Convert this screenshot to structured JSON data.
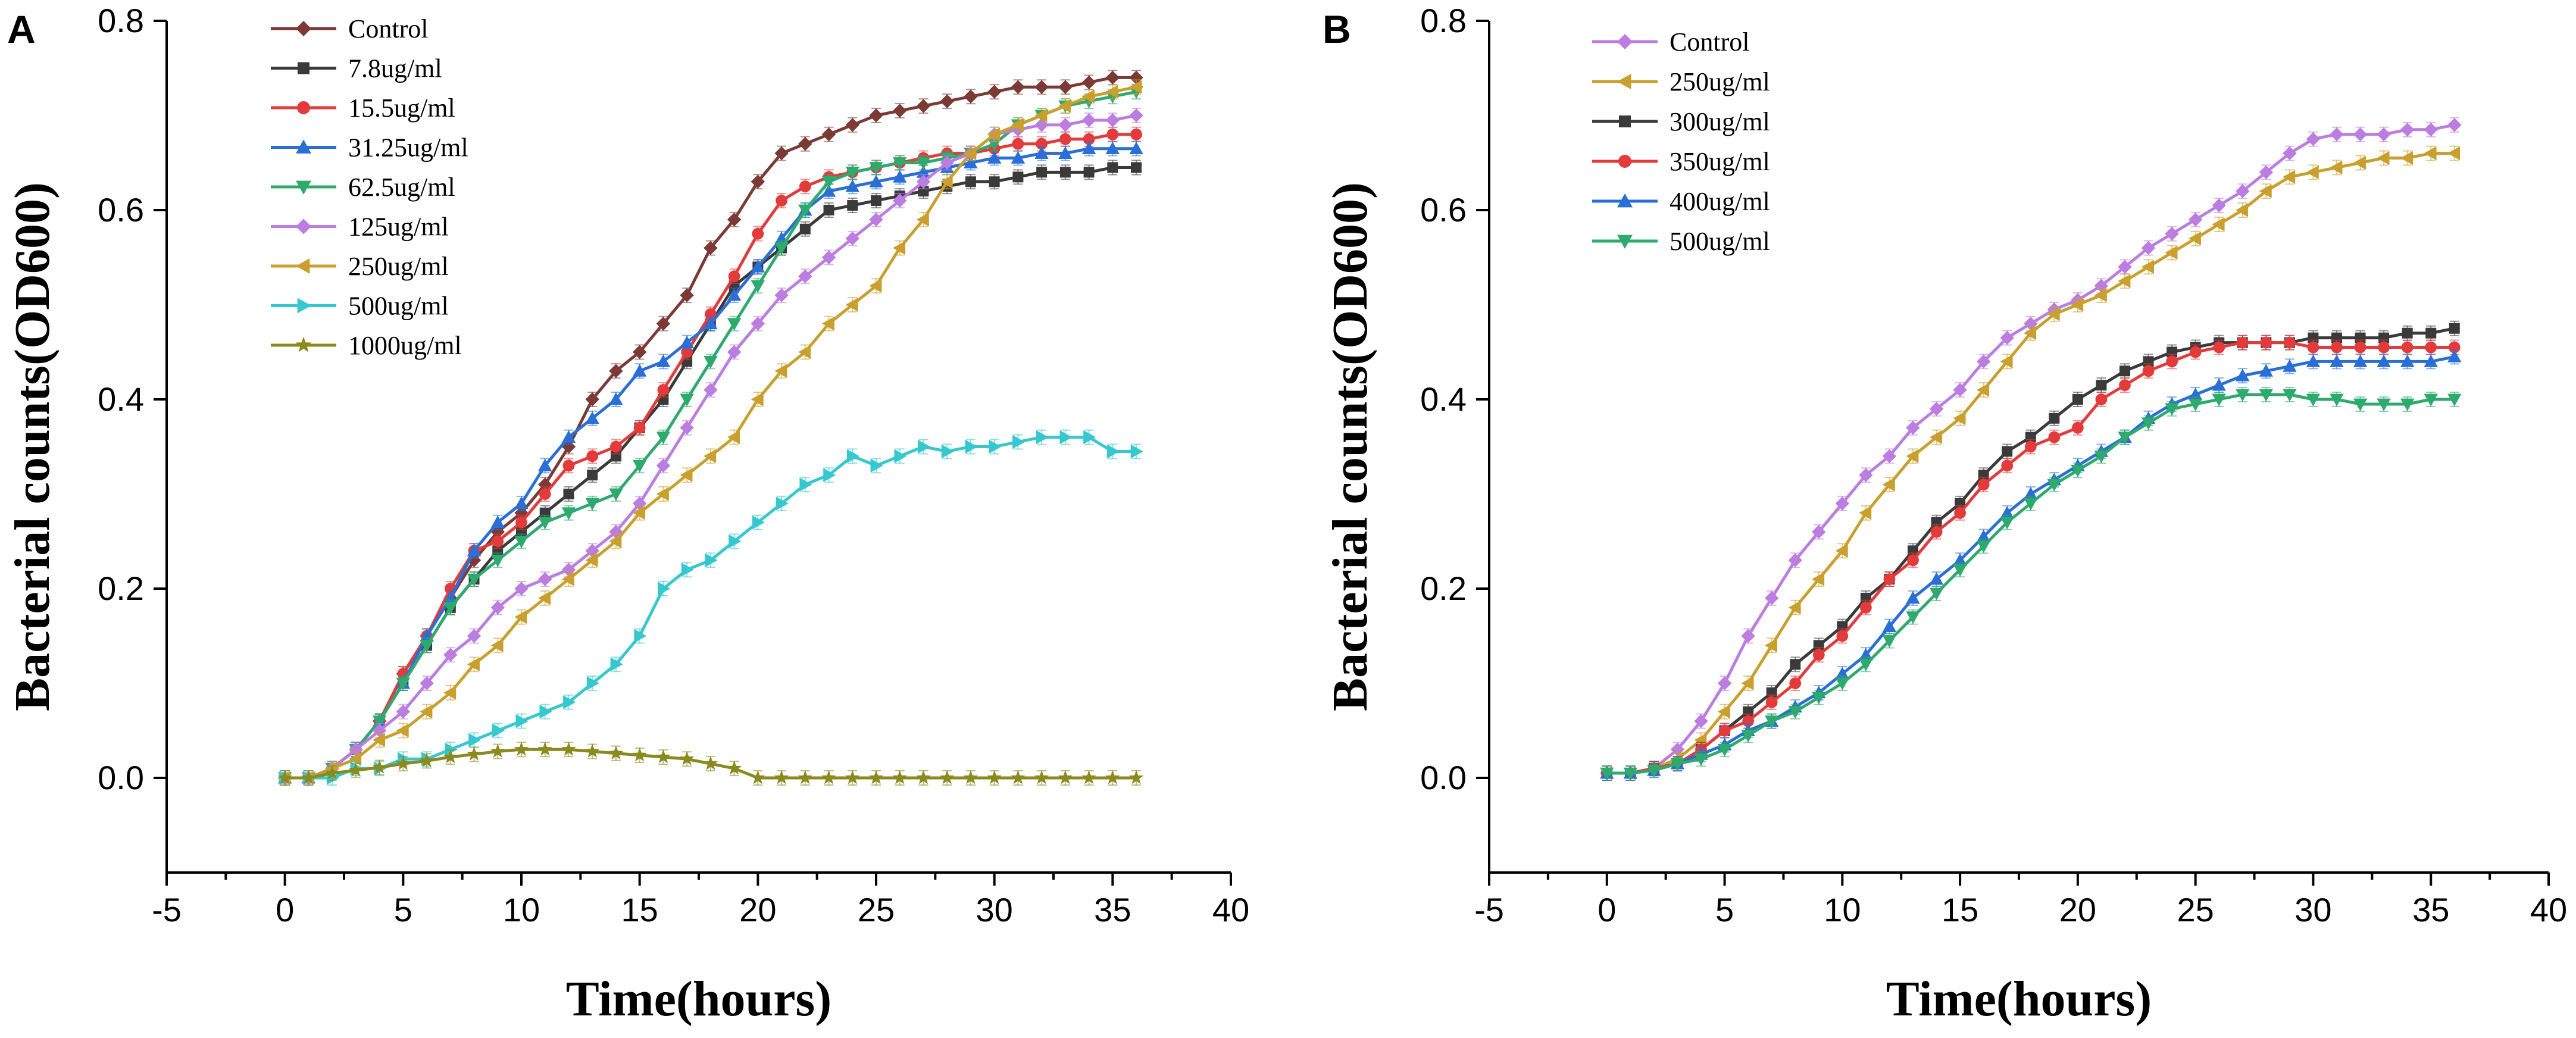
{
  "chart_data": [
    {
      "panel": "A",
      "type": "line",
      "xlabel": "Time(hours)",
      "ylabel": "Bacterial counts(OD600)",
      "xlim": [
        -5,
        40
      ],
      "ylim": [
        -0.1,
        0.8
      ],
      "xticks": [
        "-5",
        "0",
        "5",
        "10",
        "15",
        "20",
        "25",
        "30",
        "35",
        "40"
      ],
      "yticks": [
        "0.0",
        "0.2",
        "0.4",
        "0.6",
        "0.8"
      ],
      "legend_position": "top-left",
      "x": [
        0,
        1,
        2,
        3,
        4,
        5,
        6,
        7,
        8,
        9,
        10,
        11,
        12,
        13,
        14,
        15,
        16,
        17,
        18,
        19,
        20,
        21,
        22,
        23,
        24,
        25,
        26,
        27,
        28,
        29,
        30,
        31,
        32,
        33,
        34,
        35,
        36
      ],
      "series": [
        {
          "name": "Control",
          "color": "#7b3a36",
          "marker": "diamond",
          "values": [
            0.0,
            0.0,
            0.01,
            0.03,
            0.06,
            0.11,
            0.15,
            0.19,
            0.23,
            0.26,
            0.28,
            0.31,
            0.35,
            0.4,
            0.43,
            0.45,
            0.48,
            0.51,
            0.56,
            0.59,
            0.63,
            0.66,
            0.67,
            0.68,
            0.69,
            0.7,
            0.705,
            0.71,
            0.715,
            0.72,
            0.725,
            0.73,
            0.73,
            0.73,
            0.735,
            0.74,
            0.74
          ]
        },
        {
          "name": "7.8ug/ml",
          "color": "#3a3a3a",
          "marker": "square",
          "values": [
            0.0,
            0.0,
            0.01,
            0.03,
            0.06,
            0.1,
            0.14,
            0.18,
            0.21,
            0.24,
            0.26,
            0.28,
            0.3,
            0.32,
            0.34,
            0.37,
            0.4,
            0.44,
            0.48,
            0.52,
            0.54,
            0.56,
            0.58,
            0.6,
            0.605,
            0.61,
            0.615,
            0.62,
            0.625,
            0.63,
            0.63,
            0.635,
            0.64,
            0.64,
            0.64,
            0.645,
            0.645
          ]
        },
        {
          "name": "15.5ug/ml",
          "color": "#e33b3b",
          "marker": "circle",
          "values": [
            0.0,
            0.0,
            0.01,
            0.03,
            0.06,
            0.11,
            0.15,
            0.2,
            0.24,
            0.25,
            0.27,
            0.3,
            0.33,
            0.34,
            0.35,
            0.37,
            0.41,
            0.45,
            0.49,
            0.53,
            0.575,
            0.61,
            0.625,
            0.635,
            0.64,
            0.645,
            0.65,
            0.655,
            0.66,
            0.66,
            0.665,
            0.67,
            0.67,
            0.675,
            0.675,
            0.68,
            0.68
          ]
        },
        {
          "name": "31.25ug/ml",
          "color": "#2a6fd6",
          "marker": "triangle-up",
          "values": [
            0.0,
            0.0,
            0.01,
            0.03,
            0.06,
            0.1,
            0.15,
            0.19,
            0.24,
            0.27,
            0.29,
            0.33,
            0.36,
            0.38,
            0.4,
            0.43,
            0.44,
            0.46,
            0.48,
            0.51,
            0.54,
            0.57,
            0.6,
            0.62,
            0.625,
            0.63,
            0.635,
            0.64,
            0.645,
            0.65,
            0.655,
            0.655,
            0.66,
            0.66,
            0.665,
            0.665,
            0.665
          ]
        },
        {
          "name": "62.5ug/ml",
          "color": "#2eaa6e",
          "marker": "triangle-down",
          "values": [
            0.0,
            0.0,
            0.01,
            0.03,
            0.06,
            0.1,
            0.14,
            0.18,
            0.21,
            0.23,
            0.25,
            0.27,
            0.28,
            0.29,
            0.3,
            0.33,
            0.36,
            0.4,
            0.44,
            0.48,
            0.52,
            0.56,
            0.6,
            0.63,
            0.64,
            0.645,
            0.65,
            0.65,
            0.655,
            0.66,
            0.67,
            0.69,
            0.7,
            0.71,
            0.715,
            0.72,
            0.725
          ]
        },
        {
          "name": "125ug/ml",
          "color": "#bb7ee0",
          "marker": "diamond",
          "values": [
            0.0,
            0.0,
            0.01,
            0.03,
            0.05,
            0.07,
            0.1,
            0.13,
            0.15,
            0.18,
            0.2,
            0.21,
            0.22,
            0.24,
            0.26,
            0.29,
            0.33,
            0.37,
            0.41,
            0.45,
            0.48,
            0.51,
            0.53,
            0.55,
            0.57,
            0.59,
            0.61,
            0.63,
            0.65,
            0.66,
            0.68,
            0.685,
            0.69,
            0.69,
            0.695,
            0.695,
            0.7
          ]
        },
        {
          "name": "250ug/ml",
          "color": "#c9a02e",
          "marker": "left-triangle",
          "values": [
            0.0,
            0.0,
            0.01,
            0.02,
            0.04,
            0.05,
            0.07,
            0.09,
            0.12,
            0.14,
            0.17,
            0.19,
            0.21,
            0.23,
            0.25,
            0.28,
            0.3,
            0.32,
            0.34,
            0.36,
            0.4,
            0.43,
            0.45,
            0.48,
            0.5,
            0.52,
            0.56,
            0.59,
            0.63,
            0.66,
            0.68,
            0.69,
            0.7,
            0.71,
            0.72,
            0.725,
            0.73
          ]
        },
        {
          "name": "500ug/ml",
          "color": "#35c8cf",
          "marker": "right-triangle",
          "values": [
            0.0,
            0.0,
            0.0,
            0.01,
            0.01,
            0.02,
            0.02,
            0.03,
            0.04,
            0.05,
            0.06,
            0.07,
            0.08,
            0.1,
            0.12,
            0.15,
            0.2,
            0.22,
            0.23,
            0.25,
            0.27,
            0.29,
            0.31,
            0.32,
            0.34,
            0.33,
            0.34,
            0.35,
            0.345,
            0.35,
            0.35,
            0.355,
            0.36,
            0.36,
            0.36,
            0.345,
            0.345
          ]
        },
        {
          "name": "1000ug/ml",
          "color": "#8a8a1e",
          "marker": "star",
          "values": [
            0.0,
            0.0,
            0.005,
            0.008,
            0.011,
            0.015,
            0.018,
            0.022,
            0.025,
            0.028,
            0.03,
            0.03,
            0.03,
            0.028,
            0.026,
            0.024,
            0.022,
            0.02,
            0.015,
            0.01,
            0.0,
            0.0,
            0.0,
            0.0,
            0.0,
            0.0,
            0.0,
            0.0,
            0.0,
            0.0,
            0.0,
            0.0,
            0.0,
            0.0,
            0.0,
            0.0,
            0.0
          ]
        }
      ]
    },
    {
      "panel": "B",
      "type": "line",
      "xlabel": "Time(hours)",
      "ylabel": "Bacterial counts(OD600)",
      "xlim": [
        -5,
        40
      ],
      "ylim": [
        -0.1,
        0.8
      ],
      "xticks": [
        "-5",
        "0",
        "5",
        "10",
        "15",
        "20",
        "25",
        "30",
        "35",
        "40"
      ],
      "yticks": [
        "0.0",
        "0.2",
        "0.4",
        "0.6",
        "0.8"
      ],
      "legend_position": "top-left",
      "x": [
        0,
        1,
        2,
        3,
        4,
        5,
        6,
        7,
        8,
        9,
        10,
        11,
        12,
        13,
        14,
        15,
        16,
        17,
        18,
        19,
        20,
        21,
        22,
        23,
        24,
        25,
        26,
        27,
        28,
        29,
        30,
        31,
        32,
        33,
        34,
        35,
        36
      ],
      "series": [
        {
          "name": "Control",
          "color": "#bb7ee0",
          "marker": "diamond",
          "values": [
            0.005,
            0.005,
            0.01,
            0.03,
            0.06,
            0.1,
            0.15,
            0.19,
            0.23,
            0.26,
            0.29,
            0.32,
            0.34,
            0.37,
            0.39,
            0.41,
            0.44,
            0.465,
            0.48,
            0.495,
            0.505,
            0.52,
            0.54,
            0.56,
            0.575,
            0.59,
            0.605,
            0.62,
            0.64,
            0.66,
            0.675,
            0.68,
            0.68,
            0.68,
            0.685,
            0.685,
            0.69
          ]
        },
        {
          "name": "250ug/ml",
          "color": "#c9a02e",
          "marker": "left-triangle",
          "values": [
            0.005,
            0.005,
            0.01,
            0.02,
            0.04,
            0.07,
            0.1,
            0.14,
            0.18,
            0.21,
            0.24,
            0.28,
            0.31,
            0.34,
            0.36,
            0.38,
            0.41,
            0.44,
            0.47,
            0.49,
            0.5,
            0.51,
            0.525,
            0.54,
            0.555,
            0.57,
            0.585,
            0.6,
            0.62,
            0.635,
            0.64,
            0.645,
            0.65,
            0.655,
            0.655,
            0.66,
            0.66
          ]
        },
        {
          "name": "300ug/ml",
          "color": "#3a3a3a",
          "marker": "square",
          "values": [
            0.005,
            0.005,
            0.01,
            0.015,
            0.03,
            0.05,
            0.07,
            0.09,
            0.12,
            0.14,
            0.16,
            0.19,
            0.21,
            0.24,
            0.27,
            0.29,
            0.32,
            0.345,
            0.36,
            0.38,
            0.4,
            0.415,
            0.43,
            0.44,
            0.45,
            0.455,
            0.46,
            0.46,
            0.46,
            0.46,
            0.465,
            0.465,
            0.465,
            0.465,
            0.47,
            0.47,
            0.475
          ]
        },
        {
          "name": "350ug/ml",
          "color": "#e33b3b",
          "marker": "circle",
          "values": [
            0.005,
            0.005,
            0.01,
            0.015,
            0.03,
            0.05,
            0.06,
            0.08,
            0.1,
            0.13,
            0.15,
            0.18,
            0.21,
            0.23,
            0.26,
            0.28,
            0.31,
            0.33,
            0.35,
            0.36,
            0.37,
            0.4,
            0.415,
            0.43,
            0.44,
            0.45,
            0.455,
            0.46,
            0.46,
            0.46,
            0.455,
            0.455,
            0.455,
            0.455,
            0.455,
            0.455,
            0.455
          ]
        },
        {
          "name": "400ug/ml",
          "color": "#2a6fd6",
          "marker": "triangle-up",
          "values": [
            0.005,
            0.005,
            0.008,
            0.015,
            0.025,
            0.035,
            0.05,
            0.06,
            0.075,
            0.09,
            0.11,
            0.13,
            0.16,
            0.19,
            0.21,
            0.23,
            0.255,
            0.28,
            0.3,
            0.315,
            0.33,
            0.345,
            0.36,
            0.38,
            0.395,
            0.405,
            0.415,
            0.425,
            0.43,
            0.435,
            0.44,
            0.44,
            0.44,
            0.44,
            0.44,
            0.44,
            0.445
          ]
        },
        {
          "name": "500ug/ml",
          "color": "#2eaa6e",
          "marker": "triangle-down",
          "values": [
            0.005,
            0.005,
            0.008,
            0.015,
            0.02,
            0.03,
            0.045,
            0.06,
            0.07,
            0.085,
            0.1,
            0.12,
            0.145,
            0.17,
            0.195,
            0.22,
            0.245,
            0.27,
            0.29,
            0.31,
            0.325,
            0.34,
            0.36,
            0.375,
            0.39,
            0.395,
            0.4,
            0.405,
            0.405,
            0.405,
            0.4,
            0.4,
            0.395,
            0.395,
            0.395,
            0.4,
            0.4
          ]
        }
      ]
    }
  ]
}
